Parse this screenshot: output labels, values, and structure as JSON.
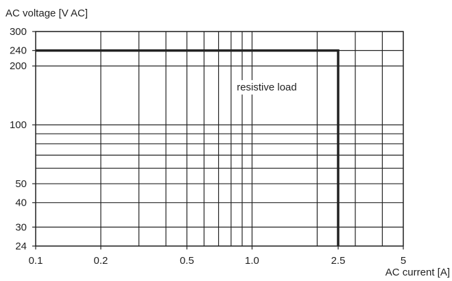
{
  "chart_data": {
    "type": "line",
    "xlabel": "AC current [A]",
    "ylabel": "AC voltage  [V AC]",
    "x_scale": "log",
    "y_scale": "log",
    "xlim": [
      0.1,
      5
    ],
    "ylim": [
      24,
      300
    ],
    "x_tick_labels": [
      {
        "value": 0.1,
        "label": "0.1"
      },
      {
        "value": 0.2,
        "label": "0.2"
      },
      {
        "value": 0.5,
        "label": "0.5"
      },
      {
        "value": 1.0,
        "label": "1.0"
      },
      {
        "value": 2.5,
        "label": "2.5"
      },
      {
        "value": 5,
        "label": "5"
      }
    ],
    "y_tick_labels": [
      {
        "value": 300,
        "label": "300"
      },
      {
        "value": 240,
        "label": "240"
      },
      {
        "value": 200,
        "label": "200"
      },
      {
        "value": 100,
        "label": "100"
      },
      {
        "value": 50,
        "label": "50"
      },
      {
        "value": 40,
        "label": "40"
      },
      {
        "value": 30,
        "label": "30"
      },
      {
        "value": 24,
        "label": "24"
      }
    ],
    "x_gridlines": [
      0.1,
      0.2,
      0.3,
      0.4,
      0.5,
      0.6,
      0.7,
      0.8,
      0.9,
      1.0,
      2.0,
      3.0,
      4.0,
      5.0
    ],
    "y_gridlines": [
      24,
      30,
      40,
      50,
      60,
      70,
      80,
      90,
      100,
      200,
      240,
      300
    ],
    "grid": true,
    "series": [
      {
        "x": [
          0.1,
          2.5,
          2.5
        ],
        "y": [
          240,
          240,
          24
        ],
        "color": "#222222"
      }
    ],
    "annotations": [
      {
        "text": "resistive load",
        "x": 0.85,
        "y": 150
      }
    ]
  }
}
